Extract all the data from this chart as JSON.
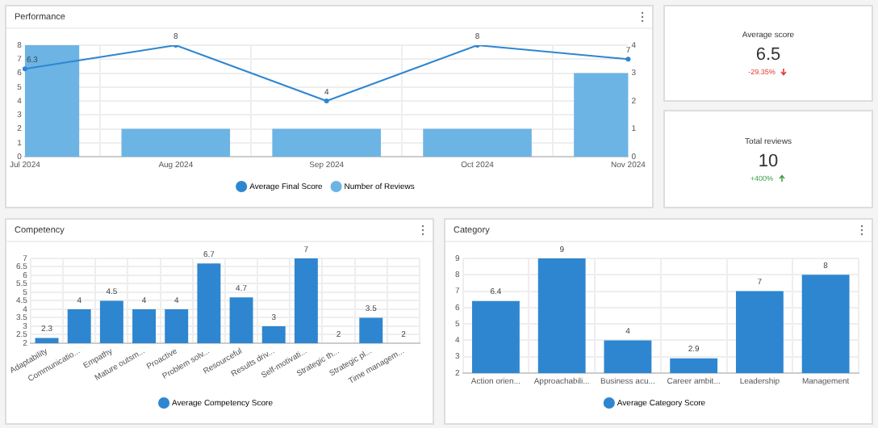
{
  "chart_data": [
    {
      "type": "bar",
      "title": "Performance",
      "categories": [
        "Jul 2024",
        "Aug 2024",
        "Sep 2024",
        "Oct 2024",
        "Nov 2024"
      ],
      "series": [
        {
          "name": "Average Final Score",
          "type": "line",
          "color": "#2f86d0",
          "values": [
            6.3,
            8,
            4,
            8,
            7
          ],
          "value_labels": [
            "6.3",
            "8",
            "4",
            "8",
            "7"
          ]
        },
        {
          "name": "Number of Reviews",
          "type": "bar",
          "color": "#6cb4e4",
          "values": [
            4,
            1,
            1,
            1,
            3
          ],
          "axis": "y2"
        }
      ],
      "ylim": [
        0,
        8
      ],
      "yticks": [
        0,
        1,
        2,
        3,
        4,
        5,
        6,
        7,
        8
      ],
      "y2lim": [
        0,
        4
      ],
      "y2ticks": [
        0,
        1,
        2,
        3,
        4
      ],
      "grid": true,
      "legend": "bottom",
      "marker": "circle"
    },
    {
      "type": "other",
      "title": "Average score",
      "annotations": [
        "6.5",
        "-29.35%"
      ]
    },
    {
      "type": "other",
      "title": "Total reviews",
      "annotations": [
        "10",
        "+400%"
      ]
    },
    {
      "type": "bar",
      "title": "Competency",
      "categories": [
        "Adaptability",
        "Communicatio...",
        "Empathy",
        "Mature outsm...",
        "Proactive",
        "Problem solv...",
        "Resourceful",
        "Results driv...",
        "Self-motivati...",
        "Strategic th...",
        "Strategic pl...",
        "Time managem..."
      ],
      "series": [
        {
          "name": "Average Competency Score",
          "color": "#2e86d0",
          "values": [
            2.3,
            4,
            4.5,
            4,
            4,
            6.7,
            4.7,
            3,
            7,
            2,
            3.5,
            2
          ]
        }
      ],
      "ylim": [
        2,
        7
      ],
      "yticks": [
        2,
        2.5,
        3,
        3.5,
        4,
        4.5,
        5,
        5.5,
        6,
        6.5,
        7
      ],
      "grid": true,
      "legend": "bottom",
      "data_labels": true
    },
    {
      "type": "bar",
      "title": "Category",
      "categories": [
        "Action orien...",
        "Approachabili...",
        "Business acu...",
        "Career ambit...",
        "Leadership",
        "Management"
      ],
      "series": [
        {
          "name": "Average Category Score",
          "color": "#2e86d0",
          "values": [
            6.4,
            9,
            4,
            2.9,
            7,
            8
          ]
        }
      ],
      "ylim": [
        2,
        9
      ],
      "yticks": [
        2,
        3,
        4,
        5,
        6,
        7,
        8,
        9
      ],
      "grid": true,
      "legend": "bottom",
      "data_labels": true
    }
  ]
}
